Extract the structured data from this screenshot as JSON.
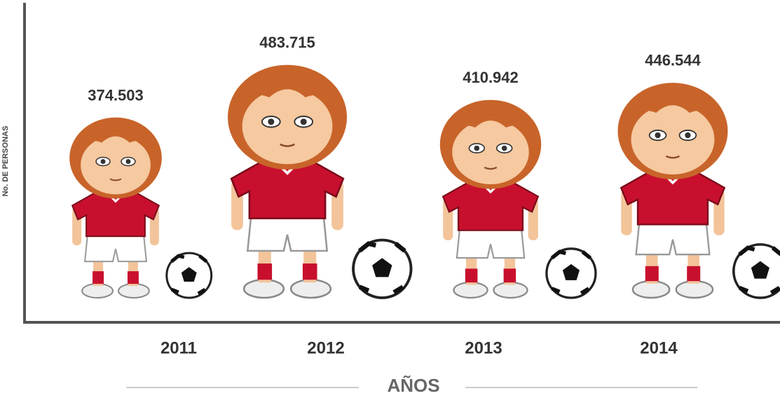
{
  "chart_data": {
    "type": "pictograph",
    "categories": [
      "2011",
      "2012",
      "2013",
      "2014"
    ],
    "values": [
      374503,
      483715,
      410942,
      446544
    ],
    "value_labels": [
      "374.503",
      "483.715",
      "410.942",
      "446.544"
    ],
    "ylabel": "No. DE PERSONAS",
    "xlabel": "AÑOS",
    "color": "#c8102e"
  }
}
